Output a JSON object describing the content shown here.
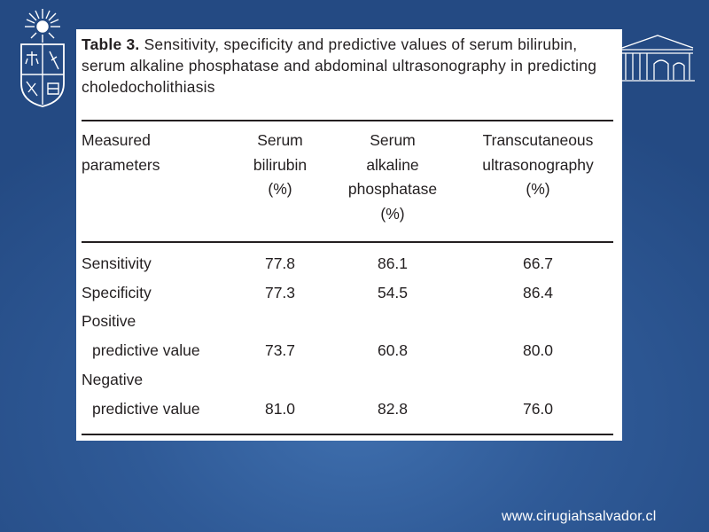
{
  "table": {
    "caption_label": "Table 3.",
    "caption_text": "Sensitivity, specificity and predictive values of serum bilirubin, serum alkaline phosphatase and abdominal ultrasonography in predicting choledocholithiasis",
    "headers": [
      [
        "Measured",
        "parameters"
      ],
      [
        "Serum",
        "bilirubin",
        "(%)"
      ],
      [
        "Serum",
        "alkaline",
        "phosphatase",
        "(%)"
      ],
      [
        "Transcutaneous",
        "ultrasonography",
        "(%)"
      ]
    ],
    "rows": [
      {
        "label": [
          "Sensitivity"
        ],
        "values": [
          "77.8",
          "86.1",
          "66.7"
        ]
      },
      {
        "label": [
          "Specificity"
        ],
        "values": [
          "77.3",
          "54.5",
          "86.4"
        ]
      },
      {
        "label": [
          "Positive",
          "predictive value"
        ],
        "values": [
          "73.7",
          "60.8",
          "80.0"
        ]
      },
      {
        "label": [
          "Negative",
          "predictive value"
        ],
        "values": [
          "81.0",
          "82.8",
          "76.0"
        ]
      }
    ]
  },
  "footer": {
    "url": "www.cirugiahsalvador.cl"
  },
  "colors": {
    "background": "#2f5a97",
    "card": "#ffffff",
    "text": "#231f20",
    "footer_text": "#ffffff"
  }
}
